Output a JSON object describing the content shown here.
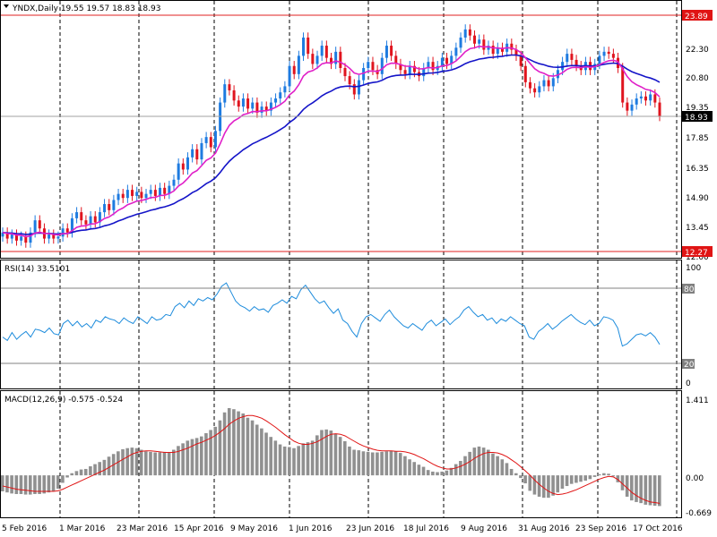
{
  "colors": {
    "up": "#1e7be0",
    "down": "#e0141e",
    "ma_fast": "#e020c8",
    "ma_slow": "#1414c8",
    "rsi": "#1e8cdc",
    "macd_hist": "#909090",
    "macd_signal": "#e01414",
    "hline_red": "#e02020",
    "grid": "#000000",
    "price_tag_bg": "#000000",
    "price_tag_red": "#e01414",
    "level_tag_bg": "#808080"
  },
  "main": {
    "header": "YNDX,Daily  19.55 19.57 18.83 18.93",
    "price_ticks": [
      "22.30",
      "20.80",
      "19.35",
      "17.85",
      "16.35",
      "14.90",
      "13.45",
      "12.00"
    ],
    "last_price_label": "18.93",
    "high_line_label": "23.89",
    "low_line_label": "12.27"
  },
  "rsi": {
    "header": "RSI(14) 33.5101",
    "ticks": [
      "100",
      "80",
      "20",
      "0"
    ]
  },
  "macd": {
    "header": "MACD(12,26,9) -0.575 -0.524",
    "ticks": [
      "1.411",
      "0.00",
      "-0.669"
    ]
  },
  "x_labels": [
    "5 Feb 2016",
    "1 Mar 2016",
    "23 Mar 2016",
    "15 Apr 2016",
    "9 May 2016",
    "1 Jun 2016",
    "23 Jun 2016",
    "18 Jul 2016",
    "9 Aug 2016",
    "31 Aug 2016",
    "23 Sep 2016",
    "17 Oct 2016"
  ],
  "chart_data": [
    {
      "type": "candlestick",
      "title": "YNDX,Daily",
      "ylim": [
        12.0,
        23.9
      ],
      "high_line": 23.89,
      "low_line": 12.27,
      "last": 18.93,
      "close": [
        13.2,
        12.9,
        13.1,
        12.8,
        13.0,
        12.7,
        13.2,
        13.8,
        13.4,
        12.9,
        13.1,
        12.9,
        13.0,
        13.4,
        13.2,
        13.9,
        14.2,
        13.8,
        13.6,
        14.0,
        13.7,
        14.2,
        14.6,
        14.3,
        14.8,
        15.1,
        14.9,
        15.3,
        15.0,
        15.2,
        14.9,
        15.1,
        15.3,
        15.0,
        15.4,
        15.1,
        15.5,
        15.8,
        16.6,
        16.3,
        16.9,
        17.3,
        16.8,
        17.6,
        17.9,
        17.4,
        18.2,
        19.6,
        20.5,
        20.2,
        19.7,
        19.4,
        19.8,
        19.3,
        19.6,
        19.1,
        19.4,
        19.2,
        19.6,
        19.8,
        20.1,
        20.4,
        21.4,
        21.0,
        21.9,
        22.8,
        22.0,
        21.5,
        21.9,
        22.4,
        21.8,
        21.5,
        22.1,
        21.3,
        20.9,
        20.5,
        20.0,
        20.7,
        21.3,
        21.6,
        21.2,
        21.0,
        21.8,
        22.4,
        21.9,
        21.5,
        21.2,
        21.0,
        21.4,
        21.1,
        20.9,
        21.3,
        21.6,
        21.2,
        21.4,
        21.8,
        21.5,
        21.9,
        22.3,
        22.8,
        23.2,
        22.9,
        22.5,
        22.7,
        22.2,
        22.4,
        22.0,
        22.3,
        22.1,
        22.5,
        22.2,
        21.9,
        21.4,
        20.6,
        20.3,
        20.1,
        20.4,
        20.7,
        20.4,
        20.8,
        21.2,
        21.6,
        22.0,
        21.7,
        21.4,
        21.2,
        21.6,
        21.2,
        21.5,
        21.9,
        22.1,
        22.0,
        21.8,
        21.3,
        19.6,
        19.2,
        19.5,
        19.8,
        19.9,
        19.7,
        20.0,
        19.6,
        18.93
      ],
      "ma_fast_period_color": "magenta",
      "ma_slow_period_color": "navy"
    },
    {
      "type": "line",
      "title": "RSI(14) 33.5101",
      "ylim": [
        0,
        100
      ],
      "levels": [
        80,
        20
      ],
      "values": [
        40,
        37,
        44,
        38,
        42,
        45,
        40,
        47,
        46,
        44,
        48,
        43,
        42,
        52,
        55,
        50,
        54,
        49,
        52,
        48,
        55,
        53,
        58,
        56,
        55,
        52,
        57,
        54,
        52,
        58,
        55,
        52,
        58,
        55,
        56,
        60,
        59,
        67,
        70,
        66,
        72,
        68,
        74,
        72,
        75,
        73,
        78,
        85,
        88,
        80,
        72,
        68,
        66,
        63,
        67,
        64,
        65,
        62,
        68,
        70,
        73,
        70,
        76,
        74,
        82,
        86,
        80,
        74,
        70,
        72,
        66,
        61,
        65,
        55,
        52,
        45,
        40,
        52,
        58,
        60,
        57,
        54,
        60,
        64,
        58,
        54,
        50,
        48,
        52,
        49,
        46,
        52,
        55,
        50,
        53,
        56,
        51,
        55,
        58,
        64,
        67,
        62,
        58,
        60,
        55,
        57,
        52,
        56,
        54,
        58,
        55,
        52,
        50,
        40,
        38,
        45,
        48,
        52,
        47,
        50,
        54,
        57,
        60,
        56,
        53,
        51,
        55,
        50,
        52,
        58,
        57,
        55,
        48,
        32,
        34,
        38,
        42,
        43,
        41,
        44,
        40,
        33.51
      ]
    },
    {
      "type": "bar+line",
      "title": "MACD(12,26,9) -0.575 -0.524",
      "ylim": [
        -0.669,
        1.411
      ],
      "histogram": [
        -0.3,
        -0.32,
        -0.34,
        -0.35,
        -0.35,
        -0.36,
        -0.36,
        -0.35,
        -0.35,
        -0.34,
        -0.32,
        -0.3,
        -0.25,
        -0.14,
        -0.04,
        0.04,
        0.08,
        0.11,
        0.12,
        0.17,
        0.21,
        0.25,
        0.29,
        0.35,
        0.4,
        0.45,
        0.49,
        0.51,
        0.52,
        0.51,
        0.48,
        0.45,
        0.44,
        0.43,
        0.43,
        0.44,
        0.43,
        0.48,
        0.55,
        0.6,
        0.65,
        0.68,
        0.7,
        0.73,
        0.79,
        0.85,
        0.91,
        1.03,
        1.18,
        1.26,
        1.24,
        1.2,
        1.16,
        1.08,
        1.03,
        0.95,
        0.88,
        0.8,
        0.72,
        0.65,
        0.58,
        0.54,
        0.53,
        0.51,
        0.55,
        0.6,
        0.62,
        0.65,
        0.75,
        0.85,
        0.86,
        0.84,
        0.78,
        0.72,
        0.64,
        0.54,
        0.48,
        0.47,
        0.45,
        0.44,
        0.43,
        0.43,
        0.44,
        0.45,
        0.46,
        0.45,
        0.42,
        0.36,
        0.3,
        0.25,
        0.2,
        0.16,
        0.1,
        0.07,
        0.06,
        0.07,
        0.09,
        0.14,
        0.21,
        0.27,
        0.36,
        0.44,
        0.52,
        0.54,
        0.52,
        0.48,
        0.41,
        0.36,
        0.3,
        0.23,
        0.12,
        0.04,
        -0.05,
        -0.15,
        -0.29,
        -0.36,
        -0.4,
        -0.42,
        -0.42,
        -0.38,
        -0.32,
        -0.25,
        -0.2,
        -0.16,
        -0.14,
        -0.12,
        -0.1,
        -0.07,
        -0.03,
        0.02,
        0.04,
        0.03,
        -0.02,
        -0.13,
        -0.28,
        -0.4,
        -0.47,
        -0.5,
        -0.52,
        -0.55,
        -0.56,
        -0.57,
        -0.575
      ],
      "signal": [
        -0.2,
        -0.22,
        -0.24,
        -0.26,
        -0.27,
        -0.28,
        -0.29,
        -0.3,
        -0.3,
        -0.3,
        -0.3,
        -0.3,
        -0.29,
        -0.26,
        -0.22,
        -0.18,
        -0.14,
        -0.1,
        -0.06,
        -0.02,
        0.02,
        0.06,
        0.1,
        0.15,
        0.2,
        0.25,
        0.3,
        0.35,
        0.4,
        0.43,
        0.45,
        0.46,
        0.46,
        0.45,
        0.44,
        0.43,
        0.43,
        0.43,
        0.45,
        0.48,
        0.51,
        0.55,
        0.59,
        0.62,
        0.66,
        0.7,
        0.75,
        0.81,
        0.88,
        0.96,
        1.02,
        1.07,
        1.1,
        1.12,
        1.12,
        1.1,
        1.07,
        1.02,
        0.96,
        0.9,
        0.83,
        0.76,
        0.7,
        0.64,
        0.6,
        0.58,
        0.58,
        0.6,
        0.63,
        0.68,
        0.73,
        0.77,
        0.78,
        0.77,
        0.74,
        0.69,
        0.64,
        0.59,
        0.55,
        0.52,
        0.49,
        0.47,
        0.46,
        0.46,
        0.46,
        0.45,
        0.45,
        0.44,
        0.42,
        0.39,
        0.35,
        0.31,
        0.26,
        0.21,
        0.17,
        0.14,
        0.12,
        0.12,
        0.14,
        0.17,
        0.21,
        0.26,
        0.32,
        0.37,
        0.41,
        0.43,
        0.43,
        0.42,
        0.39,
        0.35,
        0.29,
        0.23,
        0.16,
        0.08,
        0.0,
        -0.09,
        -0.17,
        -0.24,
        -0.3,
        -0.34,
        -0.36,
        -0.35,
        -0.33,
        -0.3,
        -0.27,
        -0.23,
        -0.19,
        -0.15,
        -0.11,
        -0.07,
        -0.04,
        -0.02,
        -0.03,
        -0.08,
        -0.16,
        -0.24,
        -0.32,
        -0.38,
        -0.43,
        -0.47,
        -0.5,
        -0.51,
        -0.524
      ]
    }
  ]
}
